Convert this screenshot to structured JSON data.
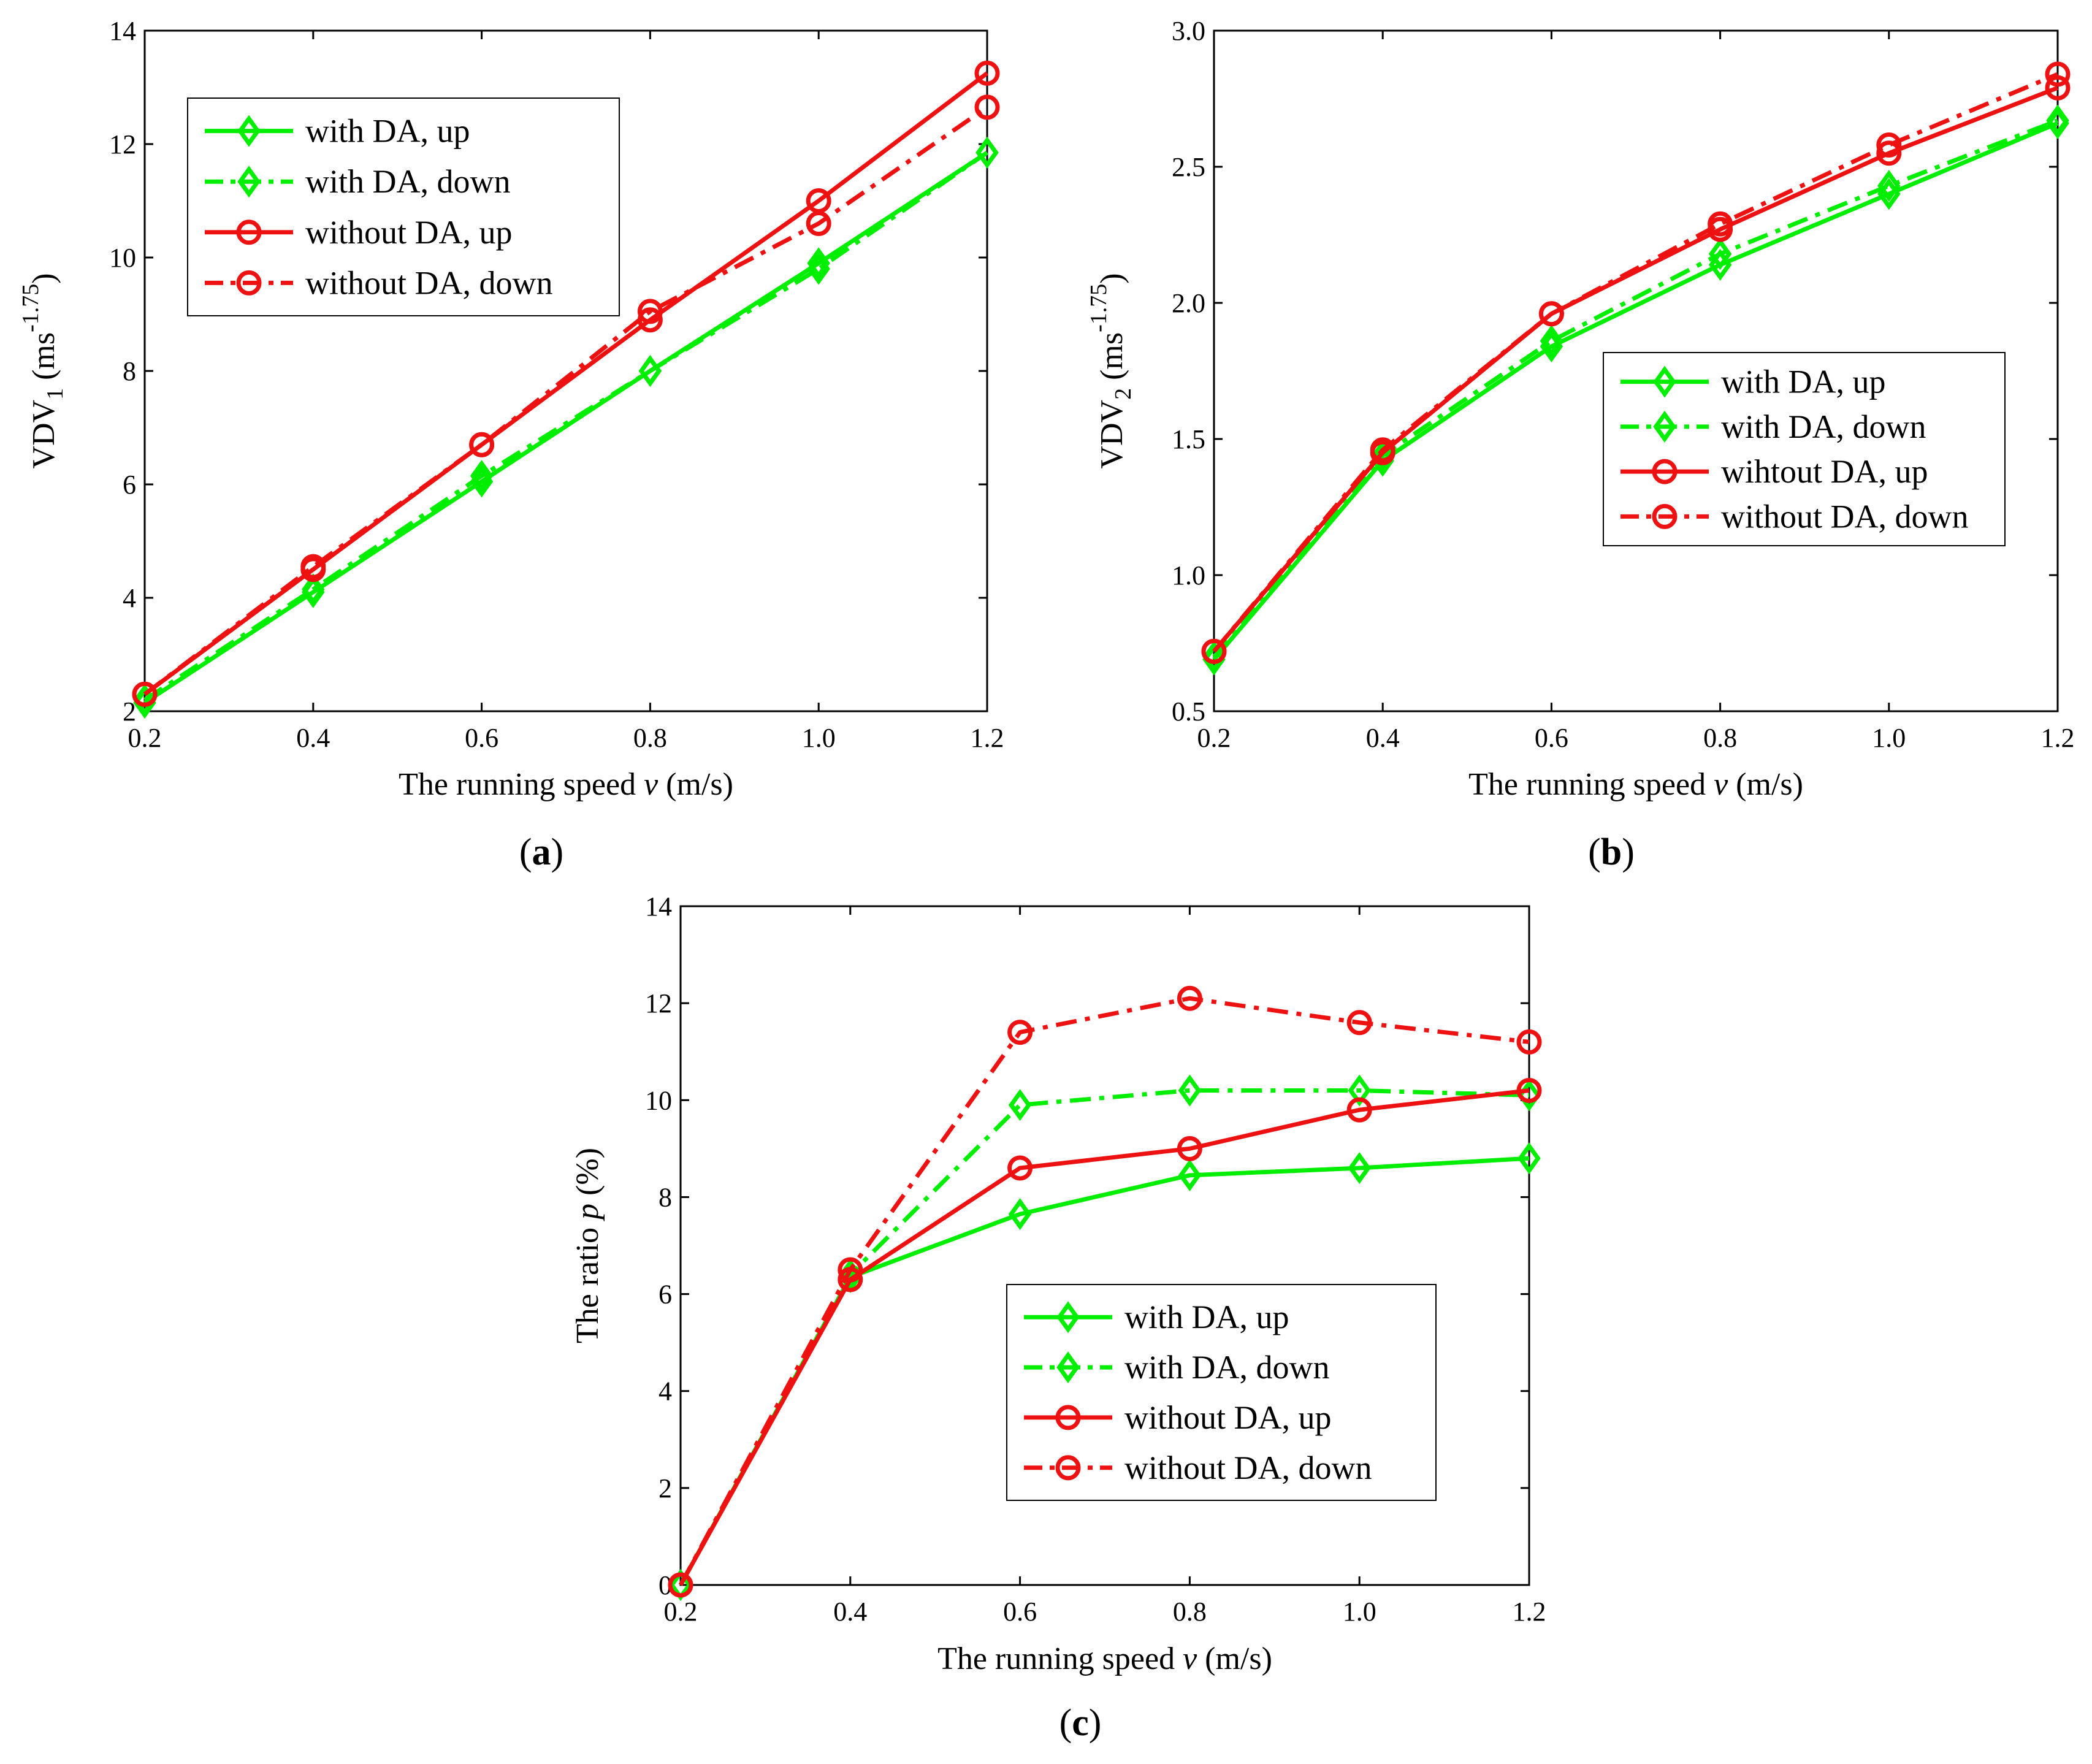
{
  "colors": {
    "with_da": "#00ee00",
    "without_da": "#ee1111",
    "axis": "#000000",
    "background": "#ffffff"
  },
  "chart_data": [
    {
      "id": "a",
      "type": "line",
      "panel_label": "(a)",
      "xlabel": "The running speed v (m/s)",
      "ylabel": "VDV1 (ms-1.75)",
      "x_ticks": [
        "0.2",
        "0.4",
        "0.6",
        "0.8",
        "1.0",
        "1.2"
      ],
      "y_ticks": [
        "2",
        "4",
        "6",
        "8",
        "10",
        "12",
        "14"
      ],
      "xlim": [
        0.2,
        1.2
      ],
      "ylim": [
        2,
        14
      ],
      "legend_position": "top-left",
      "x": [
        0.2,
        0.4,
        0.6,
        0.8,
        1.0,
        1.2
      ],
      "series": [
        {
          "name": "with DA, up",
          "color_key": "with_da",
          "dash": "solid",
          "marker": "diamond",
          "values": [
            2.15,
            4.1,
            6.05,
            8.0,
            9.9,
            11.85
          ]
        },
        {
          "name": "with DA, down",
          "color_key": "with_da",
          "dash": "dashdot",
          "marker": "diamond",
          "values": [
            2.2,
            4.15,
            6.15,
            8.0,
            9.8,
            11.85
          ]
        },
        {
          "name": "without DA, up",
          "color_key": "without_da",
          "dash": "solid",
          "marker": "circle",
          "values": [
            2.3,
            4.5,
            6.7,
            8.9,
            11.0,
            13.25
          ]
        },
        {
          "name": "without DA, down",
          "color_key": "without_da",
          "dash": "dashdot",
          "marker": "circle",
          "values": [
            2.3,
            4.55,
            6.7,
            9.05,
            10.6,
            12.65
          ]
        }
      ]
    },
    {
      "id": "b",
      "type": "line",
      "panel_label": "(b)",
      "xlabel": "The running speed v (m/s)",
      "ylabel": "VDV2 (ms-1.75)",
      "x_ticks": [
        "0.2",
        "0.4",
        "0.6",
        "0.8",
        "1.0",
        "1.2"
      ],
      "y_ticks": [
        "0.5",
        "1.0",
        "1.5",
        "2.0",
        "2.5",
        "3.0"
      ],
      "xlim": [
        0.2,
        1.2
      ],
      "ylim": [
        0.5,
        3.0
      ],
      "legend_position": "center-right",
      "x": [
        0.2,
        0.4,
        0.6,
        0.8,
        1.0,
        1.2
      ],
      "series": [
        {
          "name": "with DA, up",
          "color_key": "with_da",
          "dash": "solid",
          "marker": "diamond",
          "values": [
            0.69,
            1.42,
            1.84,
            2.14,
            2.4,
            2.66
          ]
        },
        {
          "name": "with DA, down",
          "color_key": "with_da",
          "dash": "dashdot",
          "marker": "diamond",
          "values": [
            0.7,
            1.44,
            1.86,
            2.18,
            2.43,
            2.67
          ]
        },
        {
          "name": "wihtout DA, up",
          "color_key": "without_da",
          "dash": "solid",
          "marker": "circle",
          "values": [
            0.72,
            1.45,
            1.96,
            2.27,
            2.55,
            2.79
          ]
        },
        {
          "name": "without DA, down",
          "color_key": "without_da",
          "dash": "dashdot",
          "marker": "circle",
          "values": [
            0.72,
            1.46,
            1.96,
            2.29,
            2.58,
            2.84
          ]
        }
      ]
    },
    {
      "id": "c",
      "type": "line",
      "panel_label": "(c)",
      "xlabel": "The running speed v (m/s)",
      "ylabel": "The ratio p (%)",
      "x_ticks": [
        "0.2",
        "0.4",
        "0.6",
        "0.8",
        "1.0",
        "1.2"
      ],
      "y_ticks": [
        "0",
        "2",
        "4",
        "6",
        "8",
        "10",
        "12",
        "14"
      ],
      "xlim": [
        0.2,
        1.2
      ],
      "ylim": [
        0,
        14
      ],
      "legend_position": "bottom-right",
      "x": [
        0.2,
        0.4,
        0.6,
        0.8,
        1.0,
        1.2
      ],
      "series": [
        {
          "name": "with DA, up",
          "color_key": "with_da",
          "dash": "solid",
          "marker": "diamond",
          "values": [
            0,
            6.35,
            7.65,
            8.45,
            8.6,
            8.8
          ]
        },
        {
          "name": "with DA, down",
          "color_key": "with_da",
          "dash": "dashdot",
          "marker": "diamond",
          "values": [
            0,
            6.4,
            9.9,
            10.2,
            10.2,
            10.1
          ]
        },
        {
          "name": "without DA, up",
          "color_key": "without_da",
          "dash": "solid",
          "marker": "circle",
          "values": [
            0,
            6.3,
            8.6,
            9.0,
            9.8,
            10.2
          ]
        },
        {
          "name": "without DA, down",
          "color_key": "without_da",
          "dash": "dashdot",
          "marker": "circle",
          "values": [
            0,
            6.5,
            11.4,
            12.1,
            11.6,
            11.2
          ]
        }
      ]
    }
  ]
}
